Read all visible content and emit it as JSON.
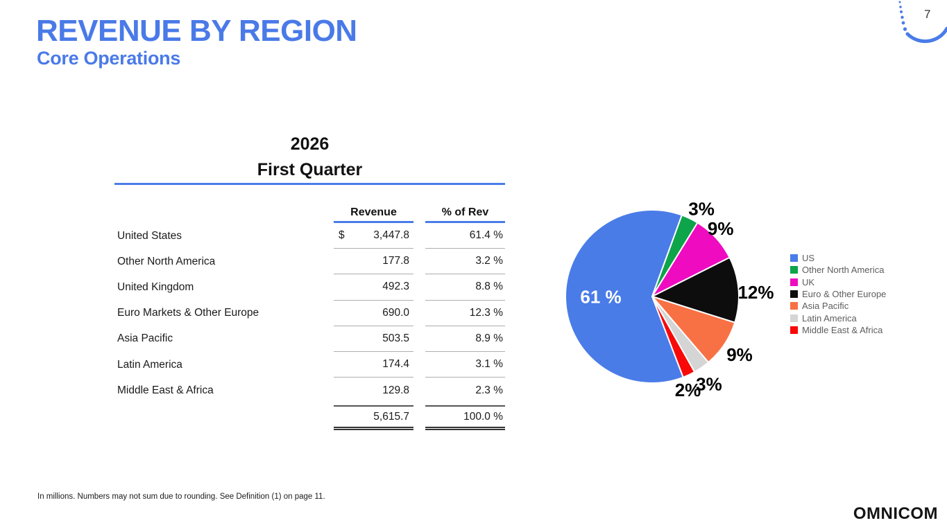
{
  "slide": {
    "title": "REVENUE BY REGION",
    "subtitle": "Core Operations",
    "page_number": "7",
    "footnote": "In millions. Numbers may not sum due to rounding. See Definition (1) on page 11.",
    "logo_text": "OMNICOM",
    "accent_color": "#4a7ae8"
  },
  "table": {
    "year": "2026",
    "period": "First Quarter",
    "columns": [
      "Revenue",
      "% of Rev"
    ],
    "currency_symbol": "$",
    "rows": [
      {
        "label": "United States",
        "revenue": "3,447.8",
        "pct": "61.4 %"
      },
      {
        "label": "Other North America",
        "revenue": "177.8",
        "pct": "3.2 %"
      },
      {
        "label": "United Kingdom",
        "revenue": "492.3",
        "pct": "8.8 %"
      },
      {
        "label": "Euro Markets & Other Europe",
        "revenue": "690.0",
        "pct": "12.3 %"
      },
      {
        "label": "Asia Pacific",
        "revenue": "503.5",
        "pct": "8.9 %"
      },
      {
        "label": "Latin America",
        "revenue": "174.4",
        "pct": "3.1 %"
      },
      {
        "label": "Middle East & Africa",
        "revenue": "129.8",
        "pct": "2.3 %"
      }
    ],
    "total": {
      "revenue": "5,615.7",
      "pct": "100.0 %"
    }
  },
  "chart_data": {
    "type": "pie",
    "categories": [
      "US",
      "Other North America",
      "UK",
      "Euro & Other Europe",
      "Asia Pacific",
      "Latin America",
      "Middle East & Africa"
    ],
    "values": [
      61.4,
      3.2,
      8.8,
      12.3,
      8.9,
      3.1,
      2.3
    ],
    "slice_labels": [
      "61 %",
      "3%",
      "9%",
      "12%",
      "9%",
      "3%",
      "2%"
    ],
    "colors": [
      "#4a7ce8",
      "#0da44a",
      "#ef0bc0",
      "#0d0d0d",
      "#f87145",
      "#d5d5d5",
      "#f90808"
    ],
    "start_angle_deg_cw_from_12": 159,
    "legend_position": "right",
    "legend": [
      "US",
      "Other North America",
      "UK",
      "Euro & Other Europe",
      "Asia Pacific",
      "Latin America",
      "Middle East & Africa"
    ]
  }
}
